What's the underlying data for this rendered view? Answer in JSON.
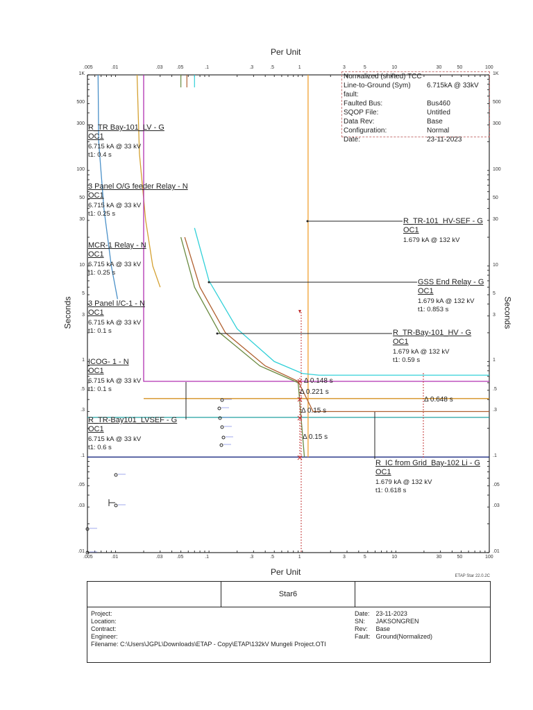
{
  "chart_data": {
    "type": "line",
    "title": "Normalized (shifted) TCC",
    "xlabel": "Per Unit",
    "ylabel": "Seconds",
    "xscale": "log",
    "yscale": "log",
    "xlim": [
      0.005,
      100
    ],
    "ylim": [
      0.01,
      1000
    ],
    "x_ticks": [
      ".005",
      ".01",
      ".03",
      ".05",
      ".1",
      ".3",
      ".5",
      "1",
      "3",
      "5",
      "10",
      "30",
      "50",
      "100"
    ],
    "y_ticks": [
      "1K",
      "500",
      "300",
      "100",
      "50",
      "30",
      "10",
      "5",
      "3",
      "1",
      ".5",
      ".3",
      ".1",
      ".05",
      ".03",
      ".01"
    ],
    "grid": false,
    "series": [
      {
        "name": "R_TR Bay-101_LV - G",
        "color": "#4a90c8",
        "type": "curve",
        "points": [
          [
            0.0065,
            1000
          ],
          [
            0.0066,
            200
          ],
          [
            0.0075,
            40
          ],
          [
            0.009,
            10
          ],
          [
            0.0105,
            4.5
          ]
        ]
      },
      {
        "name": "3 Panel O/G feeder Relay - N",
        "color": "#d4a030",
        "type": "curve",
        "points": [
          [
            0.017,
            1000
          ],
          [
            0.018,
            150
          ],
          [
            0.021,
            30
          ],
          [
            0.025,
            10
          ],
          [
            0.03,
            6
          ]
        ]
      },
      {
        "name": "MCR-1 Relay - N",
        "color": "#b030b0",
        "type": "definite",
        "points": [
          [
            0.02,
            1000
          ],
          [
            0.02,
            0.62
          ],
          [
            100,
            0.62
          ]
        ]
      },
      {
        "name": "3 Panel I/C-1 - N",
        "color": "#d49020",
        "type": "definite",
        "points": [
          [
            0.02,
            0.41
          ],
          [
            100,
            0.41
          ]
        ]
      },
      {
        "name": "ICOG- 1 - N",
        "color": "#20a0a0",
        "type": "definite",
        "points": [
          [
            0.005,
            0.26
          ],
          [
            100,
            0.26
          ]
        ]
      },
      {
        "name": "R_TR-Bay101_LVSEF - G",
        "color": "#1a2a80",
        "type": "definite",
        "points": [
          [
            0.005,
            0.1
          ],
          [
            100,
            0.1
          ]
        ]
      },
      {
        "name": "R_TR-101_HV-SEF - G",
        "color": "#f0a030",
        "type": "definite",
        "points": [
          [
            1.15,
            1000
          ],
          [
            1.15,
            0.1
          ]
        ]
      },
      {
        "name": "GSS End Relay - G",
        "color": "#30d0d8",
        "type": "curve",
        "points": [
          [
            0.07,
            25
          ],
          [
            0.1,
            7
          ],
          [
            0.2,
            2.2
          ],
          [
            0.5,
            1.0
          ],
          [
            1.0,
            0.75
          ],
          [
            1.5,
            0.72
          ],
          [
            100,
            0.72
          ]
        ]
      },
      {
        "name": "R_TR-Bay-101_HV - G",
        "color": "#b06030",
        "type": "curve",
        "points": [
          [
            0.055,
            20
          ],
          [
            0.08,
            6
          ],
          [
            0.15,
            2.0
          ],
          [
            0.4,
            0.9
          ],
          [
            0.9,
            0.62
          ],
          [
            1.3,
            0.3
          ],
          [
            100,
            0.3
          ]
        ]
      },
      {
        "name": "R_IC from Grid_Bay-102 Li - G",
        "color": "#6a8a40",
        "type": "curve",
        "points": [
          [
            0.05,
            20
          ],
          [
            0.07,
            6
          ],
          [
            0.13,
            2.0
          ],
          [
            0.35,
            0.9
          ],
          [
            0.9,
            0.6
          ],
          [
            1.05,
            0.1
          ]
        ]
      }
    ],
    "annotations": [
      {
        "text": "Δ 0.148 s",
        "x": 1.0,
        "y": 0.62
      },
      {
        "text": "Δ 0.221 s",
        "x": 1.0,
        "y": 0.45
      },
      {
        "text": "Δ 0.15 s",
        "x": 1.0,
        "y": 0.31
      },
      {
        "text": "Δ 0.15 s",
        "x": 1.0,
        "y": 0.17
      },
      {
        "text": "Δ 0.648 s",
        "x": 20,
        "y": 0.4
      }
    ]
  },
  "axes": {
    "top_title": "Per Unit",
    "bottom_title": "Per Unit",
    "left_title": "Seconds",
    "right_title": "Seconds"
  },
  "info_box": {
    "title": "Normalized (shifted) TCC",
    "rows": [
      {
        "k": "Line-to-Ground (Sym)  fault:",
        "v": "6.715kA @ 33kV"
      },
      {
        "k": "Faulted  Bus:",
        "v": "Bus460"
      },
      {
        "k": "SQOP  File:",
        "v": "Untitled"
      },
      {
        "k": "Data  Rev:",
        "v": "Base"
      },
      {
        "k": "Configuration:",
        "v": "Normal"
      },
      {
        "k": "Date:",
        "v": "23-11-2023"
      }
    ]
  },
  "device_labels": [
    {
      "name": "R_TR Bay-101_LV - G",
      "oc": "OC1",
      "fault": "6.715 kA @ 33 kV",
      "t1": "t1: 0.4 s"
    },
    {
      "name": "3 Panel O/G feeder Relay - N",
      "oc": "OC1",
      "fault": "6.715 kA @ 33 kV",
      "t1": "t1: 0.25 s"
    },
    {
      "name": "MCR-1 Relay - N",
      "oc": "OC1",
      "fault": "6.715 kA @ 33 kV",
      "t1": "t1: 0.25 s"
    },
    {
      "name": "3 Panel I/C-1 - N",
      "oc": "OC1",
      "fault": "6.715 kA @ 33 kV",
      "t1": "t1: 0.1 s"
    },
    {
      "name": "ICOG- 1 - N",
      "oc": "OC1",
      "fault": "6.715 kA @ 33 kV",
      "t1": "t1: 0.1 s"
    },
    {
      "name": "R_TR-Bay101_LVSEF - G",
      "oc": "OC1",
      "fault": "6.715 kA @ 33 kV",
      "t1": "t1: 0.6 s"
    },
    {
      "name": "R_TR-101_HV-SEF - G",
      "oc": "OC1",
      "fault": "1.679 kA @ 132 kV",
      "t1": ""
    },
    {
      "name": "GSS End Relay - G",
      "oc": "OC1",
      "fault": "1.679 kA @ 132 kV",
      "t1": "t1: 0.853 s"
    },
    {
      "name": "R_TR-Bay-101_HV - G",
      "oc": "OC1",
      "fault": "1.679 kA @ 132 kV",
      "t1": "t1: 0.59 s"
    },
    {
      "name": "R_IC from Grid_Bay-102 Li - G",
      "oc": "OC1",
      "fault": "1.679 kA @ 132 kV",
      "t1": "t1: 0.618 s"
    }
  ],
  "deltas": [
    "Δ 0.148 s",
    "Δ 0.221 s",
    "Δ 0.15 s",
    "Δ 0.15 s",
    "Δ 0.648 s"
  ],
  "version": "ETAP Star 22.0.2C",
  "title_block": {
    "center": "Star6",
    "project_label": "Project:",
    "location_label": "Location:",
    "contract_label": "Contract:",
    "engineer_label": "Engineer:",
    "filename_label": "Filename:",
    "filename": "C:\\Users\\JGPL\\Downloads\\ETAP - Copy\\ETAP\\132kV Mungeli Project.OTI",
    "date_label": "Date:",
    "date": "23-11-2023",
    "sn_label": "SN:",
    "sn": "JAKSONGREN",
    "rev_label": "Rev:",
    "rev": "Base",
    "fault_label": "Fault:",
    "fault": "Ground(Normalized)"
  }
}
